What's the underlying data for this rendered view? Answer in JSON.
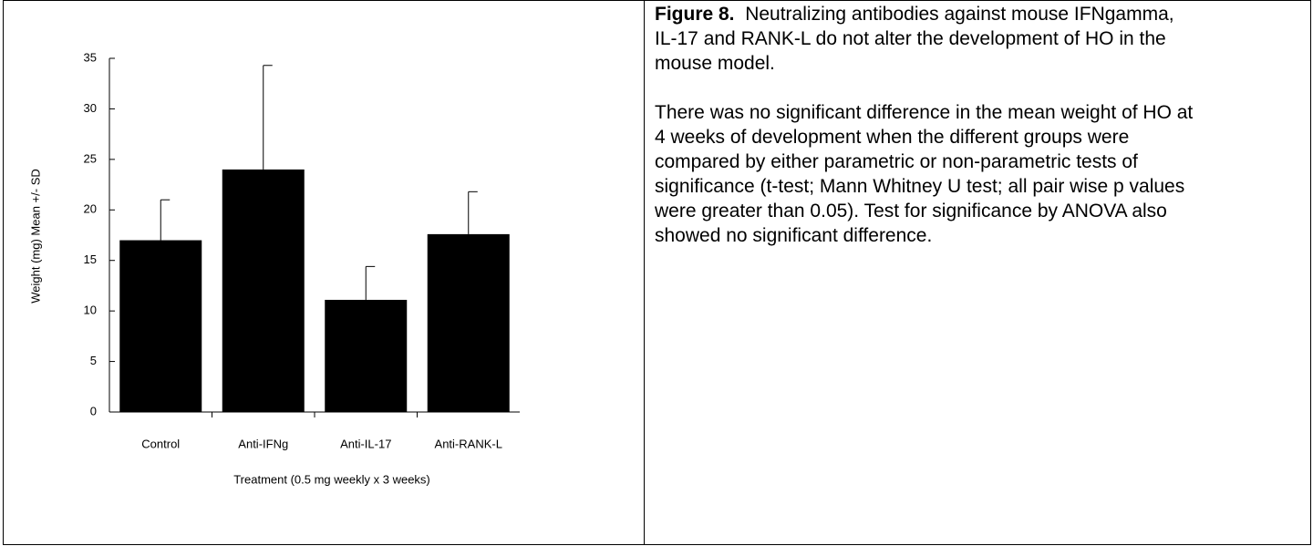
{
  "chart_data": {
    "type": "bar",
    "categories": [
      "Control",
      "Anti-IFNg",
      "Anti-IL-17",
      "Anti-RANK-L"
    ],
    "values": [
      17,
      24,
      11.1,
      17.6
    ],
    "errors": [
      4,
      10.3,
      3.3,
      4.2
    ],
    "color": "#000000",
    "ylim": [
      0,
      35
    ],
    "yticks": [
      0,
      5,
      10,
      15,
      20,
      25,
      30,
      35
    ],
    "x_label": "Treatment  (0.5 mg weekly x 3 weeks)",
    "y_label": "Weight (mg)  Mean +/- SD"
  },
  "caption": {
    "label": "Figure 8.",
    "title": "Neutralizing antibodies against mouse IFNgamma, IL-17 and RANK-L do not alter the development of HO in the mouse model.",
    "body": "There was no significant difference in the mean weight of HO at 4 weeks of development when the different groups were compared by either parametric or non-parametric tests of significance (t-test; Mann Whitney U test; all  pair wise p values were greater than 0.05).  Test for significance by ANOVA also showed no significant difference."
  }
}
